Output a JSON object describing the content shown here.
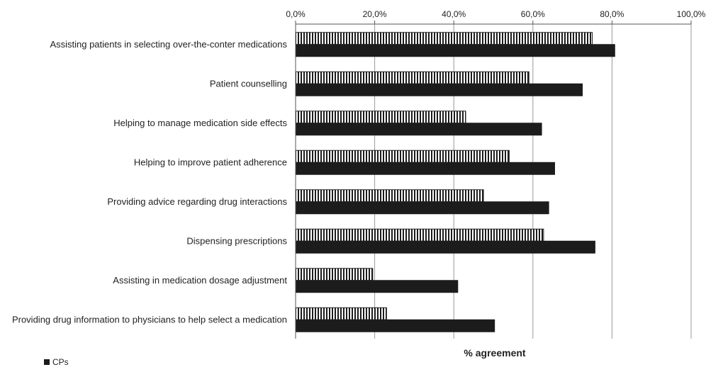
{
  "chart_data": {
    "type": "bar",
    "orientation": "horizontal",
    "xlabel": "% agreement",
    "xlim": [
      0,
      100
    ],
    "ticks": [
      "0,0%",
      "20,0%",
      "40,0%",
      "60,0%",
      "80,0%",
      "100,0%"
    ],
    "grid": true,
    "categories": [
      "Assisting patients in selecting over-the-conter medications",
      "Patient counselling",
      "Helping to manage medication side effects",
      "Helping to improve patient adherence",
      "Providing advice regarding drug interactions",
      "Dispensing prescriptions",
      "Assisting in medication dosage adjustment",
      "Providing drug information to physicians to help select a medication"
    ],
    "series": [
      {
        "pattern": "vertical-stripes",
        "values": [
          75.0,
          59.0,
          43.0,
          54.0,
          47.5,
          62.7,
          19.5,
          23.0
        ]
      },
      {
        "name": "CPs",
        "pattern": "solid",
        "color": "#1c1c1c",
        "values": [
          80.7,
          72.5,
          62.2,
          65.5,
          64.0,
          75.7,
          41.0,
          50.3
        ]
      }
    ],
    "legend": {
      "position": "bottom-left",
      "entries": [
        "CPs"
      ]
    }
  }
}
